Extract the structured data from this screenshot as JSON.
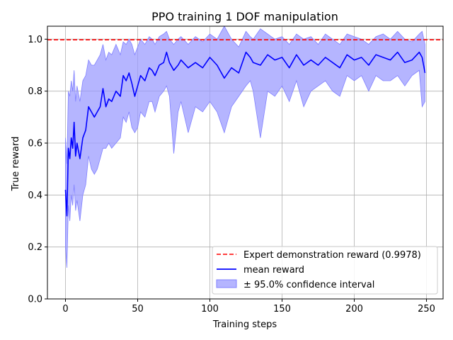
{
  "chart_data": {
    "type": "line",
    "title": "PPO training 1 DOF manipulation",
    "xlabel": "Training steps",
    "ylabel": "True reward",
    "xlim": [
      -12.5,
      261.5
    ],
    "ylim": [
      0.0,
      1.05
    ],
    "xticks": [
      0,
      50,
      100,
      150,
      200,
      250
    ],
    "yticks": [
      0.0,
      0.2,
      0.4,
      0.6,
      0.8,
      1.0
    ],
    "grid": true,
    "legend_position": "lower right",
    "colors": {
      "mean": "#0000ff",
      "band_fill": "#9999ff",
      "band_stroke": "#8080ff",
      "reference": "#ff0000",
      "grid": "#b0b0b0"
    },
    "reference_line": {
      "name": "Expert demonstration reward (0.9978)",
      "y": 0.9978
    },
    "series": [
      {
        "name": "mean reward",
        "x": [
          0,
          1,
          2,
          3,
          4,
          5,
          6,
          7,
          8,
          10,
          12,
          14,
          16,
          18,
          20,
          22,
          24,
          26,
          28,
          30,
          32,
          35,
          38,
          40,
          42,
          44,
          46,
          48,
          50,
          52,
          55,
          58,
          60,
          62,
          65,
          68,
          70,
          72,
          75,
          78,
          80,
          85,
          90,
          95,
          100,
          105,
          110,
          115,
          120,
          125,
          128,
          130,
          135,
          140,
          145,
          150,
          155,
          160,
          165,
          170,
          175,
          180,
          185,
          190,
          195,
          200,
          205,
          210,
          215,
          220,
          225,
          230,
          235,
          240,
          245,
          247,
          249
        ],
        "values": [
          0.42,
          0.32,
          0.58,
          0.54,
          0.62,
          0.58,
          0.68,
          0.55,
          0.6,
          0.54,
          0.62,
          0.65,
          0.74,
          0.72,
          0.7,
          0.72,
          0.74,
          0.81,
          0.74,
          0.77,
          0.76,
          0.8,
          0.78,
          0.86,
          0.84,
          0.87,
          0.83,
          0.78,
          0.82,
          0.86,
          0.84,
          0.89,
          0.88,
          0.86,
          0.9,
          0.91,
          0.95,
          0.91,
          0.88,
          0.9,
          0.92,
          0.89,
          0.91,
          0.89,
          0.93,
          0.9,
          0.85,
          0.89,
          0.87,
          0.95,
          0.93,
          0.91,
          0.9,
          0.94,
          0.92,
          0.93,
          0.89,
          0.94,
          0.9,
          0.92,
          0.9,
          0.93,
          0.91,
          0.89,
          0.94,
          0.92,
          0.93,
          0.9,
          0.94,
          0.93,
          0.92,
          0.95,
          0.91,
          0.92,
          0.95,
          0.93,
          0.87
        ]
      },
      {
        "name": "± 95.0% confidence interval",
        "x": [
          0,
          1,
          2,
          3,
          4,
          5,
          6,
          7,
          8,
          10,
          12,
          14,
          16,
          18,
          20,
          22,
          24,
          26,
          28,
          30,
          32,
          35,
          38,
          40,
          42,
          44,
          46,
          48,
          50,
          52,
          55,
          58,
          60,
          62,
          65,
          68,
          70,
          72,
          75,
          78,
          80,
          85,
          90,
          95,
          100,
          105,
          110,
          115,
          120,
          125,
          128,
          130,
          135,
          140,
          145,
          150,
          155,
          160,
          165,
          170,
          175,
          180,
          185,
          190,
          195,
          200,
          205,
          210,
          215,
          220,
          225,
          230,
          235,
          240,
          245,
          247,
          249
        ],
        "lower": [
          0.2,
          0.12,
          0.36,
          0.3,
          0.4,
          0.36,
          0.44,
          0.34,
          0.38,
          0.3,
          0.4,
          0.44,
          0.55,
          0.5,
          0.48,
          0.5,
          0.54,
          0.58,
          0.58,
          0.6,
          0.58,
          0.6,
          0.62,
          0.7,
          0.68,
          0.72,
          0.66,
          0.64,
          0.66,
          0.72,
          0.7,
          0.76,
          0.76,
          0.72,
          0.78,
          0.8,
          0.82,
          0.78,
          0.56,
          0.72,
          0.76,
          0.64,
          0.74,
          0.72,
          0.76,
          0.72,
          0.64,
          0.74,
          0.78,
          0.82,
          0.84,
          0.8,
          0.62,
          0.8,
          0.78,
          0.82,
          0.76,
          0.84,
          0.74,
          0.8,
          0.82,
          0.84,
          0.8,
          0.78,
          0.86,
          0.84,
          0.86,
          0.8,
          0.86,
          0.84,
          0.84,
          0.86,
          0.82,
          0.86,
          0.88,
          0.74,
          0.76
        ],
        "upper": [
          0.62,
          0.52,
          0.8,
          0.78,
          0.84,
          0.8,
          0.88,
          0.76,
          0.82,
          0.76,
          0.84,
          0.86,
          0.92,
          0.9,
          0.9,
          0.92,
          0.94,
          0.98,
          0.92,
          0.95,
          0.94,
          0.98,
          0.94,
          0.99,
          0.98,
          1.0,
          0.98,
          0.94,
          0.97,
          1.0,
          0.98,
          1.01,
          1.0,
          0.98,
          1.01,
          1.02,
          1.03,
          1.0,
          0.98,
          1.0,
          1.01,
          0.98,
          1.01,
          0.99,
          1.02,
          1.0,
          1.05,
          1.0,
          0.97,
          1.03,
          1.01,
          1.0,
          1.04,
          1.02,
          1.0,
          1.01,
          0.98,
          1.02,
          1.0,
          1.01,
          0.98,
          1.02,
          1.0,
          0.98,
          1.02,
          1.01,
          1.0,
          0.98,
          1.01,
          1.02,
          1.0,
          1.03,
          1.0,
          0.99,
          1.02,
          1.03,
          0.98
        ]
      }
    ]
  }
}
